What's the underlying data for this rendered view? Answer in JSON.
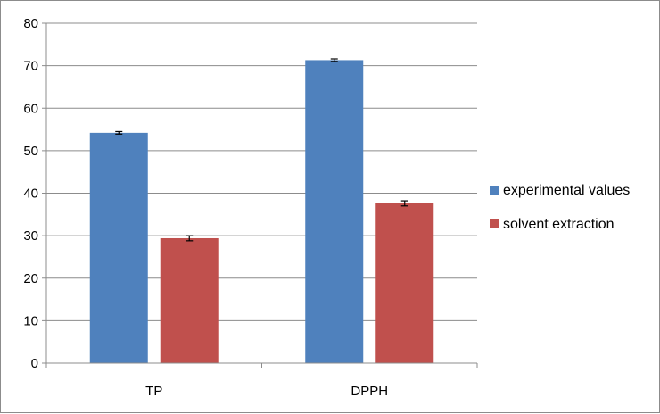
{
  "chart_data": {
    "type": "bar",
    "categories": [
      "TP",
      "DPPH"
    ],
    "series": [
      {
        "name": "experimental values",
        "values": [
          54.2,
          71.3
        ],
        "errors": [
          0.3,
          0.3
        ],
        "color": "#4f81bd"
      },
      {
        "name": "solvent extraction",
        "values": [
          29.4,
          37.6
        ],
        "errors": [
          0.6,
          0.6
        ],
        "color": "#c0504d"
      }
    ],
    "title": "",
    "xlabel": "",
    "ylabel": "",
    "ylim": [
      0,
      80
    ],
    "yticks": [
      0,
      10,
      20,
      30,
      40,
      50,
      60,
      70,
      80
    ],
    "grid": true,
    "legend_position": "right"
  }
}
